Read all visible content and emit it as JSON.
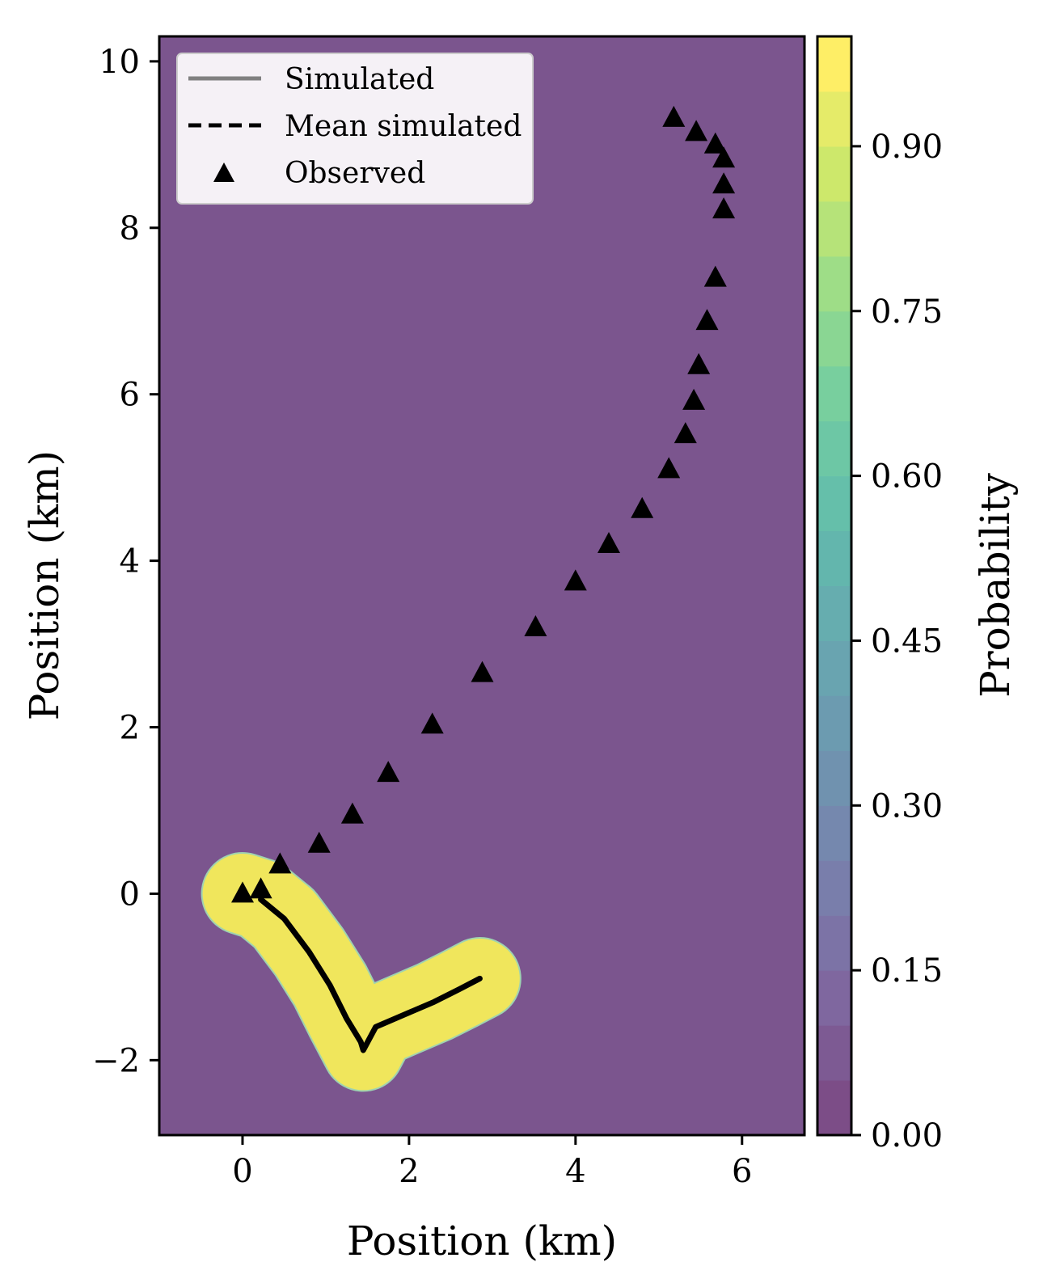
{
  "chart_data": {
    "type": "scatter",
    "xlabel": "Position (km)",
    "ylabel": "Position (km)",
    "xlim": [
      -1.0,
      6.75
    ],
    "ylim": [
      -2.9,
      10.3
    ],
    "x_ticks": [
      0,
      2,
      4,
      6
    ],
    "x_tick_labels": [
      "0",
      "2",
      "4",
      "6"
    ],
    "y_ticks": [
      -2,
      0,
      2,
      4,
      6,
      8,
      10
    ],
    "y_tick_labels": [
      "−2",
      "0",
      "2",
      "4",
      "6",
      "8",
      "10"
    ],
    "grid": false,
    "background_probability": 0.0,
    "colors": {
      "background_field": "#7b558e",
      "high_probability_field": "#f0e65c",
      "markers": "#000000",
      "simulated": "#808080",
      "mean_simulated": "#000000"
    },
    "legend": {
      "placement": "top-left",
      "entries": [
        {
          "label": "Simulated",
          "style": "solid-gray-line"
        },
        {
          "label": "Mean simulated",
          "style": "dashed-black-line"
        },
        {
          "label": "Observed",
          "style": "black-triangle"
        }
      ]
    },
    "colorbar": {
      "label": "Probability",
      "range": [
        0.0,
        1.0
      ],
      "ticks": [
        0.0,
        0.15,
        0.3,
        0.45,
        0.6,
        0.75,
        0.9
      ],
      "tick_labels": [
        "0.00",
        "0.15",
        "0.30",
        "0.45",
        "0.60",
        "0.75",
        "0.90"
      ],
      "levels": 20
    },
    "series": [
      {
        "name": "Observed",
        "marker": "triangle",
        "x": [
          0.0,
          0.22,
          0.45,
          0.92,
          1.32,
          1.75,
          2.28,
          2.88,
          3.52,
          4.0,
          4.4,
          4.8,
          5.12,
          5.32,
          5.42,
          5.48,
          5.58,
          5.68,
          5.78,
          5.78,
          5.78,
          5.68,
          5.45,
          5.18
        ],
        "y": [
          0.0,
          0.05,
          0.35,
          0.6,
          0.95,
          1.45,
          2.03,
          2.65,
          3.2,
          3.75,
          4.2,
          4.62,
          5.1,
          5.52,
          5.92,
          6.35,
          6.88,
          7.4,
          8.22,
          8.52,
          8.83,
          9.0,
          9.15,
          9.32
        ]
      },
      {
        "name": "Mean simulated",
        "style": "dashed",
        "x": [
          0.22,
          0.5,
          0.8,
          1.05,
          1.25,
          1.42,
          1.45,
          1.6,
          1.95,
          2.3,
          2.6,
          2.85
        ],
        "y": [
          -0.07,
          -0.3,
          -0.7,
          -1.1,
          -1.5,
          -1.78,
          -1.88,
          -1.6,
          -1.45,
          -1.3,
          -1.15,
          -1.02
        ]
      }
    ],
    "probability_region": {
      "value": 1.0,
      "path_x": [
        0.0,
        0.22,
        0.5,
        0.8,
        1.05,
        1.25,
        1.45,
        1.6,
        1.95,
        2.3,
        2.6,
        2.85
      ],
      "path_y": [
        0.0,
        -0.07,
        -0.3,
        -0.7,
        -1.1,
        -1.5,
        -1.88,
        -1.6,
        -1.45,
        -1.3,
        -1.15,
        -1.02
      ],
      "buffer_km": 0.48
    }
  }
}
